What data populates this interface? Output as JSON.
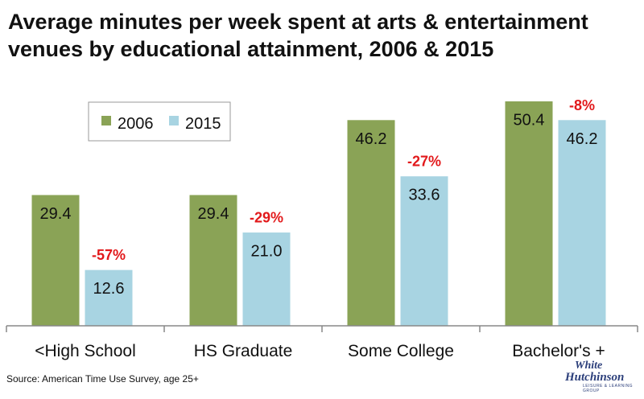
{
  "title_line1": "Average minutes per week spent at arts & entertainment",
  "title_line2": "venues by educational attainment, 2006 & 2015",
  "source": "Source: American Time Use Survey, age 25+",
  "logo": {
    "line1": "White",
    "line2": "Hutchinson",
    "tagline": "LEISURE & LEARNING GROUP"
  },
  "colors": {
    "s2006": "#8aa356",
    "s2015": "#a8d4e2",
    "change": "#e2191b",
    "axis": "#888888"
  },
  "chart_data": {
    "type": "bar",
    "categories": [
      "<High School",
      "HS Graduate",
      "Some College",
      "Bachelor's +"
    ],
    "series": [
      {
        "name": "2006",
        "values": [
          29.4,
          29.4,
          46.2,
          50.4
        ],
        "labels": [
          "29.4",
          "29.4",
          "46.2",
          "50.4"
        ]
      },
      {
        "name": "2015",
        "values": [
          12.6,
          21.0,
          33.6,
          46.2
        ],
        "labels": [
          "12.6",
          "21.0",
          "33.6",
          "46.2"
        ]
      }
    ],
    "annotations": [
      "-57%",
      "-29%",
      "-27%",
      "-8%"
    ],
    "ylim": [
      0,
      55
    ],
    "legend": "top-left",
    "grid": false
  }
}
